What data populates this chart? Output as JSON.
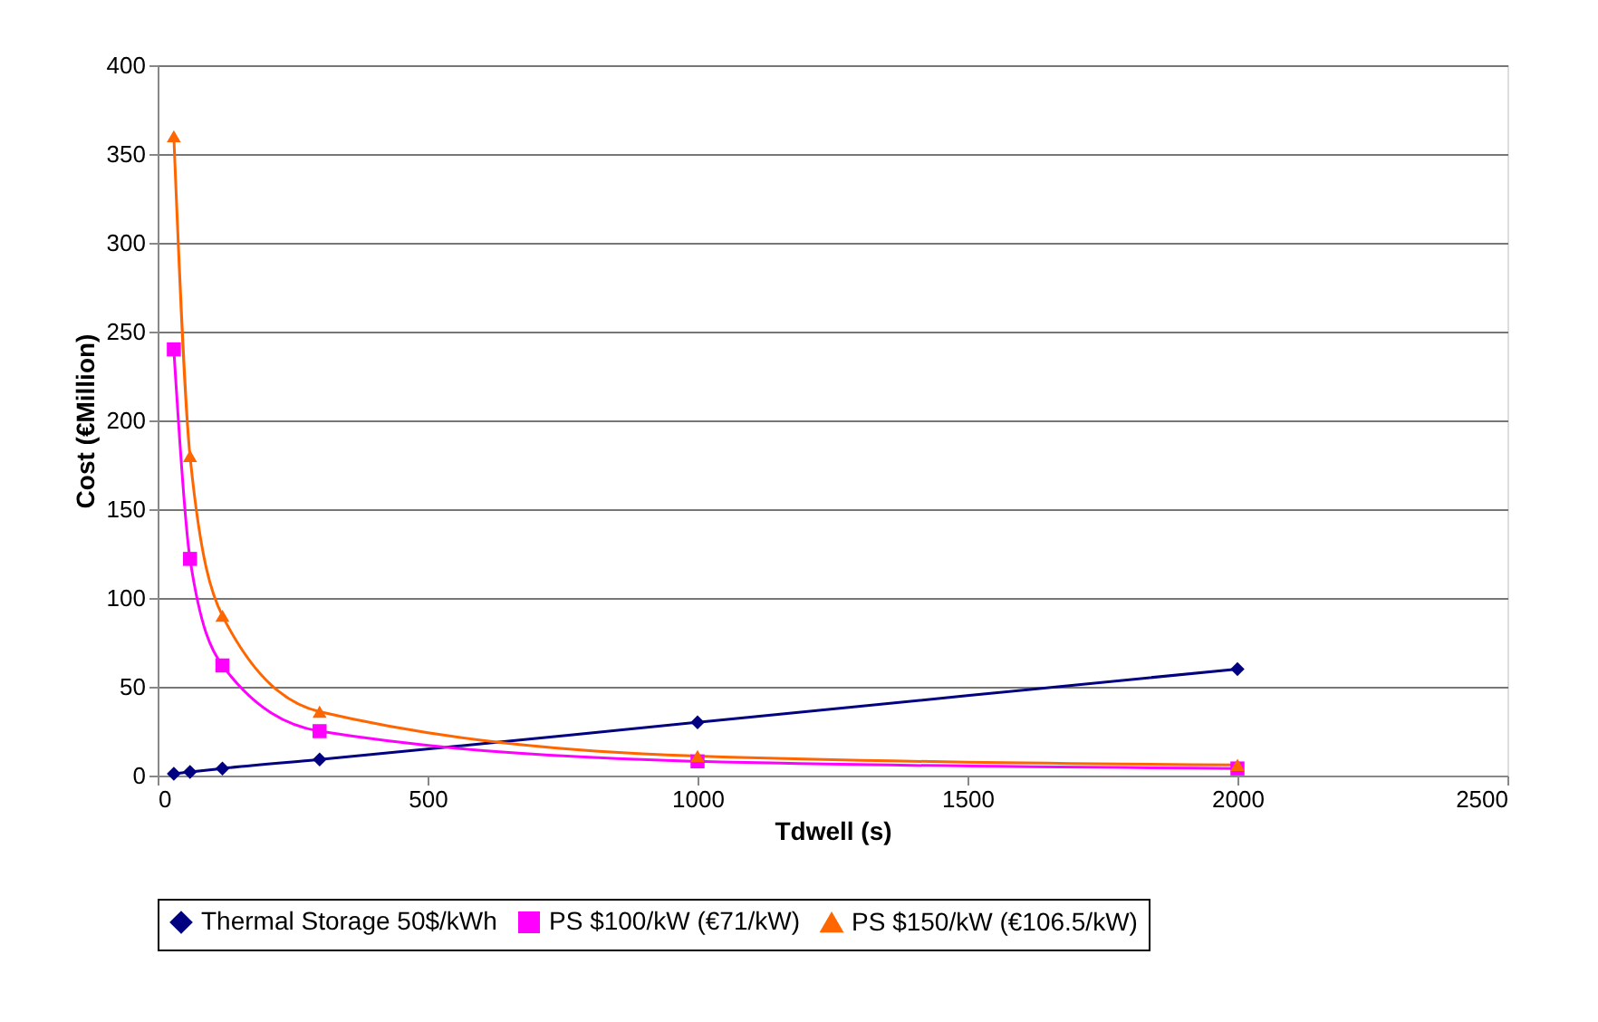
{
  "chart_data": {
    "type": "line",
    "xlabel": "Tdwell (s)",
    "ylabel": "Cost (€Million)",
    "xlim": [
      0,
      2500
    ],
    "xticks": [
      0,
      500,
      1000,
      1500,
      2000,
      2500
    ],
    "ylim": [
      0,
      400
    ],
    "yticks": [
      0,
      50,
      100,
      150,
      200,
      250,
      300,
      350,
      400
    ],
    "grid": "y",
    "legend": "bottom",
    "series": [
      {
        "name": "Thermal Storage 50$/kWh",
        "color": "#000080",
        "marker": "diamond",
        "x": [
          30,
          60,
          120,
          300,
          1000,
          2000
        ],
        "values": [
          1,
          2,
          4,
          9,
          30,
          60
        ]
      },
      {
        "name": "PS $100/kW (€71/kW)",
        "color": "#ff00ff",
        "marker": "square",
        "x": [
          30,
          60,
          120,
          300,
          1000,
          2000
        ],
        "values": [
          240,
          122,
          62,
          25,
          8,
          4
        ]
      },
      {
        "name": "PS $150/kW (€106.5/kW)",
        "color": "#ff6600",
        "marker": "triangle",
        "x": [
          30,
          60,
          120,
          300,
          1000,
          2000
        ],
        "values": [
          360,
          180,
          90,
          36,
          11,
          6
        ]
      }
    ]
  }
}
